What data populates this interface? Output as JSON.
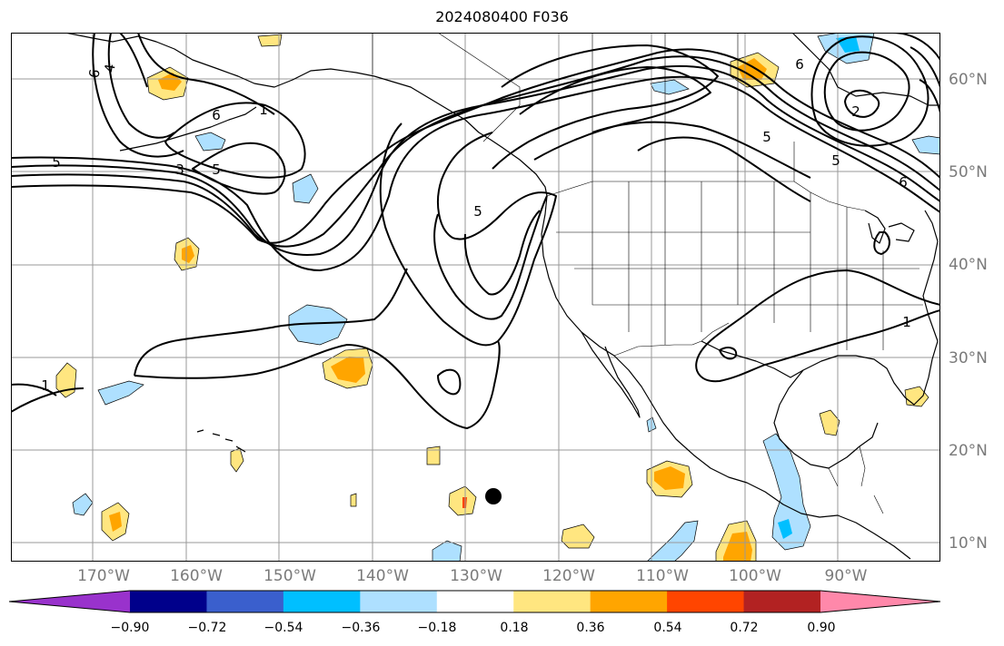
{
  "title": "2024080400 F036",
  "longitude_labels": [
    "170°W",
    "160°W",
    "150°W",
    "140°W",
    "130°W",
    "120°W",
    "110°W",
    "100°W",
    "90°W"
  ],
  "latitude_labels": [
    "60°N",
    "50°N",
    "40°N",
    "30°N",
    "20°N",
    "10°N"
  ],
  "contour_labels": [
    "6",
    "4",
    "6",
    "1",
    "5",
    "3",
    "5",
    "1",
    "5",
    "6",
    "5",
    "5",
    "6",
    "1",
    "2"
  ],
  "colorbar": {
    "tick_labels": [
      "−0.90",
      "−0.72",
      "−0.54",
      "−0.36",
      "−0.18",
      "0.18",
      "0.36",
      "0.54",
      "0.72",
      "0.90"
    ],
    "colors": [
      "#9932cc",
      "#00008b",
      "#3a5fcd",
      "#00bfff",
      "#aee0ff",
      "#ffffff",
      "#ffe680",
      "#ffa500",
      "#ff4500",
      "#b22222",
      "#ff88aa"
    ]
  },
  "marker": "black-dot"
}
